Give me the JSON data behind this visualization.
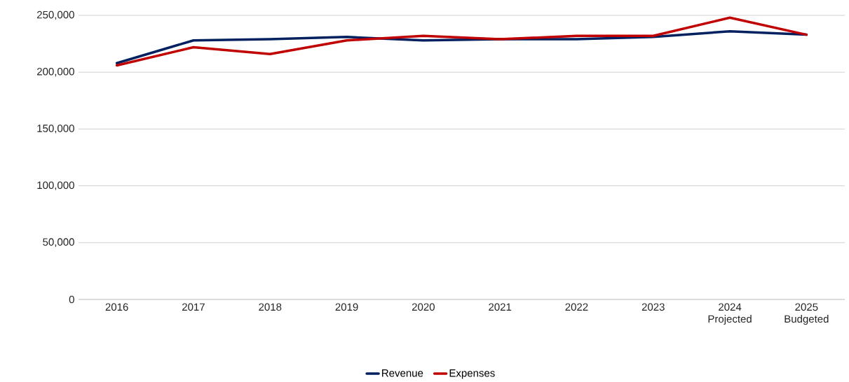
{
  "chart_data": {
    "type": "line",
    "categories": [
      "2016",
      "2017",
      "2018",
      "2019",
      "2020",
      "2021",
      "2022",
      "2023",
      "2024 Projected",
      "2025 Budgeted"
    ],
    "series": [
      {
        "name": "Revenue",
        "color": "#002060",
        "values": [
          208000,
          228000,
          229000,
          231000,
          228000,
          229000,
          229000,
          231000,
          236000,
          233000
        ]
      },
      {
        "name": "Expenses",
        "color": "#c00000",
        "values": [
          206000,
          222000,
          216000,
          228000,
          232000,
          229000,
          232000,
          232000,
          248000,
          233000
        ]
      }
    ],
    "ylim": [
      0,
      250000
    ],
    "yticks": [
      {
        "value": 0,
        "label": "0"
      },
      {
        "value": 50000,
        "label": "50,000"
      },
      {
        "value": 100000,
        "label": "100,000"
      },
      {
        "value": 150000,
        "label": "150,000"
      },
      {
        "value": 200000,
        "label": "200,000"
      },
      {
        "value": 250000,
        "label": "250,000"
      }
    ],
    "grid": "y",
    "legend": "bottom",
    "marker": "none",
    "line_style": "solid"
  }
}
